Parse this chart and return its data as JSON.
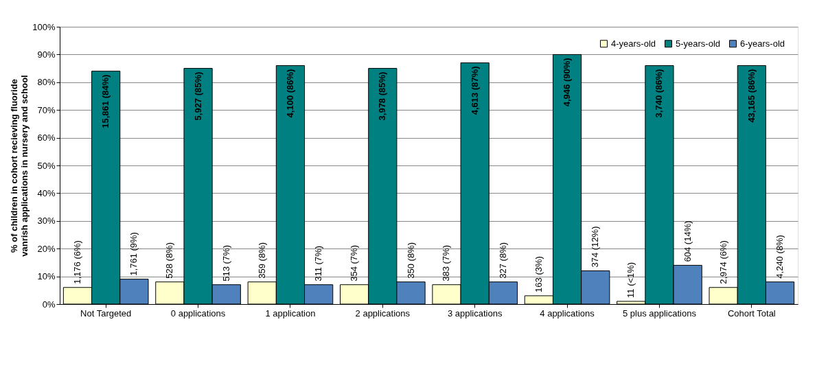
{
  "chart_data": {
    "type": "bar",
    "ylabel": "% of children in cohort recieving fluoride vanrish applications in nursery and school",
    "categories": [
      "Not Targeted",
      "0 applications",
      "1 application",
      "2 applications",
      "3 applications",
      "4 applications",
      "5 plus applications",
      "Cohort Total"
    ],
    "series": [
      {
        "name": "4-years-old",
        "color": "#ffffcc",
        "values": [
          6,
          8,
          8,
          7,
          7,
          3,
          1,
          6
        ],
        "value_labels": [
          "1,176 (6%)",
          "528 (8%)",
          "359 (8%)",
          "354 (7%)",
          "383 (7%)",
          "163 (3%)",
          "11 (<1%)",
          "2,974 (6%)"
        ]
      },
      {
        "name": "5-years-old",
        "color": "#008080",
        "values": [
          84,
          85,
          86,
          85,
          87,
          90,
          86,
          86
        ],
        "value_labels": [
          "15,861 (84%)",
          "5,927 (85%)",
          "4,100 (86%)",
          "3,978 (85%)",
          "4,613 (87%)",
          "4,946 (90%)",
          "3,740 (86%)",
          "43,165 (86%)"
        ]
      },
      {
        "name": "6-years-old",
        "color": "#4f81bd",
        "values": [
          9,
          7,
          7,
          8,
          8,
          12,
          14,
          8
        ],
        "value_labels": [
          "1,761 (9%)",
          "513 (7%)",
          "311 (7%)",
          "350 (8%)",
          "327 (8%)",
          "374 (12%)",
          "604 (14%)",
          "4,240 (8%)"
        ]
      }
    ],
    "ylim": [
      0,
      100
    ],
    "yticks": [
      {
        "value": 0,
        "label": "0%"
      },
      {
        "value": 10,
        "label": "10%"
      },
      {
        "value": 20,
        "label": "20%"
      },
      {
        "value": 30,
        "label": "30%"
      },
      {
        "value": 40,
        "label": "40%"
      },
      {
        "value": 50,
        "label": "50%"
      },
      {
        "value": 60,
        "label": "60%"
      },
      {
        "value": 70,
        "label": "70%"
      },
      {
        "value": 80,
        "label": "80%"
      },
      {
        "value": 90,
        "label": "90%"
      },
      {
        "value": 100,
        "label": "100%"
      }
    ],
    "grid": "y",
    "legend": "top right"
  }
}
